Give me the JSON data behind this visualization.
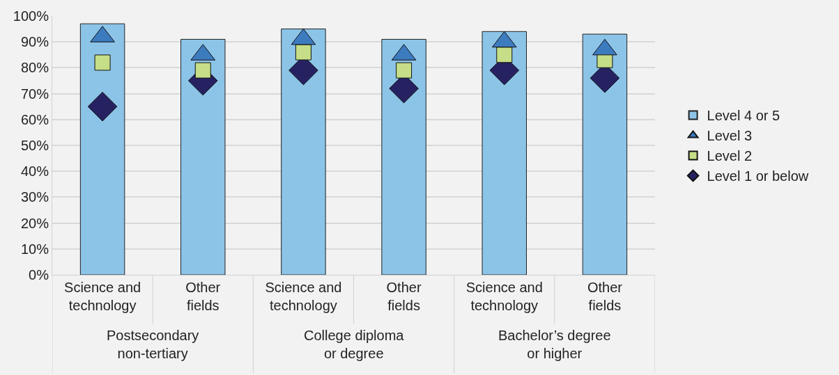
{
  "chart_data": {
    "type": "bar",
    "categories": [
      "Science and\ntechnology",
      "Other\nfields",
      "Science and\ntechnology",
      "Other\nfields",
      "Science and\ntechnology",
      "Other\nfields"
    ],
    "series": [
      {
        "name": "Level 4 or 5",
        "color": "#8cc4e8",
        "values": [
          97,
          91,
          95,
          91,
          94,
          93
        ]
      },
      {
        "name": "Level 3",
        "type": "scatter",
        "marker": "triangle",
        "color": "#3d7bbf",
        "values": [
          92,
          85,
          91,
          85,
          90,
          87
        ]
      },
      {
        "name": "Level 2",
        "type": "scatter",
        "marker": "square",
        "color": "#c5de87",
        "values": [
          82,
          79,
          86,
          79,
          85,
          83
        ]
      },
      {
        "name": "Level 1 or below",
        "type": "scatter",
        "marker": "diamond",
        "color": "#262262",
        "values": [
          65,
          75,
          79,
          72,
          79,
          76
        ]
      }
    ],
    "annotations": [
      "Postsecondary\nnon-tertiary",
      "College diploma\nor degree",
      "Bachelor’s degree\nor higher"
    ],
    "ylim": [
      0,
      100
    ],
    "yticks": [
      {
        "value": 0,
        "label": "0%"
      },
      {
        "value": 10,
        "label": "10%"
      },
      {
        "value": 20,
        "label": "20%"
      },
      {
        "value": 30,
        "label": "30%"
      },
      {
        "value": 40,
        "label": "40%"
      },
      {
        "value": 50,
        "label": "50%"
      },
      {
        "value": 60,
        "label": "60%"
      },
      {
        "value": 70,
        "label": "70%"
      },
      {
        "value": 80,
        "label": "80%"
      },
      {
        "value": 90,
        "label": "90%"
      },
      {
        "value": 100,
        "label": "100%"
      }
    ],
    "grid": "y",
    "legend": "right"
  }
}
